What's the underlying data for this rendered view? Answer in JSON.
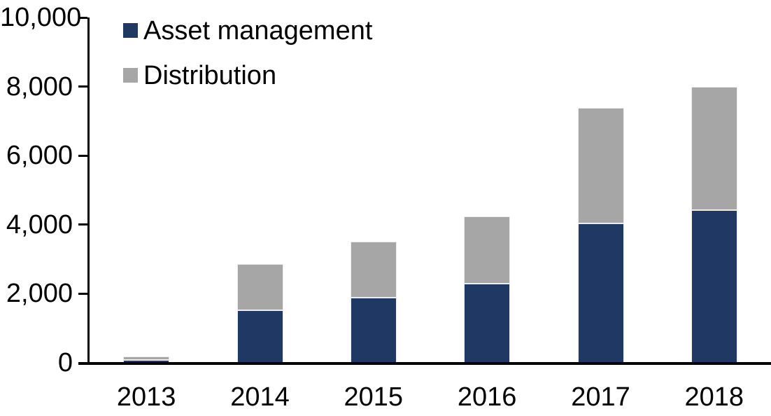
{
  "chart_data": {
    "type": "bar",
    "stacked": true,
    "title": "",
    "xlabel": "",
    "ylabel": "",
    "categories": [
      "2013",
      "2014",
      "2015",
      "2016",
      "2017",
      "2018"
    ],
    "series": [
      {
        "name": "Asset management",
        "color": "#1F3864",
        "values": [
          80,
          1520,
          1890,
          2290,
          4030,
          4420
        ]
      },
      {
        "name": "Distribution",
        "color": "#A6A6A6",
        "values": [
          100,
          1350,
          1620,
          1950,
          3360,
          3580
        ]
      }
    ],
    "totals": [
      180,
      2870,
      3510,
      4240,
      7390,
      8000
    ],
    "ylim": [
      0,
      10000
    ],
    "ytick_interval": 2000,
    "ytick_labels": [
      "0",
      "2,000",
      "4,000",
      "6,000",
      "8,000",
      "10,000"
    ],
    "grid": false,
    "legend_position": "top-left-inside",
    "axis_color": "#000000",
    "background_color": "#FFFFFF",
    "text_color": "#000000"
  }
}
